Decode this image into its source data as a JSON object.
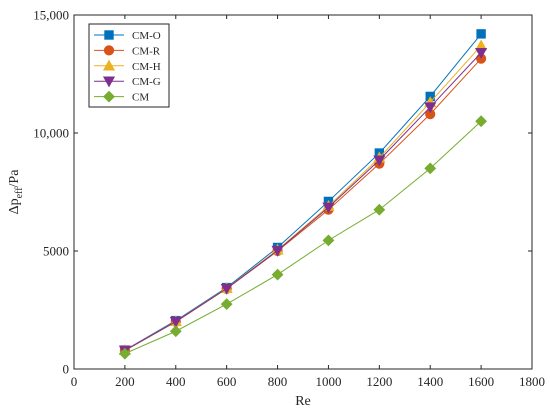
{
  "chart_data": {
    "type": "line",
    "xlabel": "Re",
    "ylabel_main": "Δp",
    "ylabel_sub": "eff",
    "ylabel_tail": "/Pa",
    "xlim": [
      0,
      1800
    ],
    "ylim": [
      0,
      15000
    ],
    "xticks": [
      0,
      200,
      400,
      600,
      800,
      1000,
      1200,
      1400,
      1600,
      1800
    ],
    "yticks": [
      0,
      5000,
      10000,
      15000
    ],
    "xtick_labels": [
      "0",
      "200",
      "400",
      "600",
      "800",
      "1000",
      "1200",
      "1400",
      "1600",
      "1800"
    ],
    "ytick_labels": [
      "0",
      "5000",
      "10,000",
      "15,000"
    ],
    "grid": false,
    "legend_position": "top-left",
    "x": [
      200,
      400,
      600,
      800,
      1000,
      1200,
      1400,
      1600
    ],
    "series": [
      {
        "name": "CM-O",
        "color": "#0072BD",
        "marker": "square",
        "values": [
          800,
          2050,
          3450,
          5150,
          7100,
          9150,
          11550,
          14200
        ]
      },
      {
        "name": "CM-R",
        "color": "#D95319",
        "marker": "circle",
        "values": [
          780,
          2000,
          3400,
          5000,
          6750,
          8700,
          10800,
          13150
        ]
      },
      {
        "name": "CM-H",
        "color": "#EDB120",
        "marker": "triangle-up",
        "values": [
          790,
          2020,
          3420,
          5050,
          6900,
          8950,
          11300,
          13700
        ]
      },
      {
        "name": "CM-G",
        "color": "#7E2F8E",
        "marker": "triangle-down",
        "values": [
          790,
          2010,
          3410,
          5020,
          6850,
          8850,
          11100,
          13400
        ]
      },
      {
        "name": "CM",
        "color": "#77AC30",
        "marker": "diamond",
        "values": [
          650,
          1600,
          2750,
          4000,
          5450,
          6750,
          8500,
          10500
        ]
      }
    ]
  }
}
